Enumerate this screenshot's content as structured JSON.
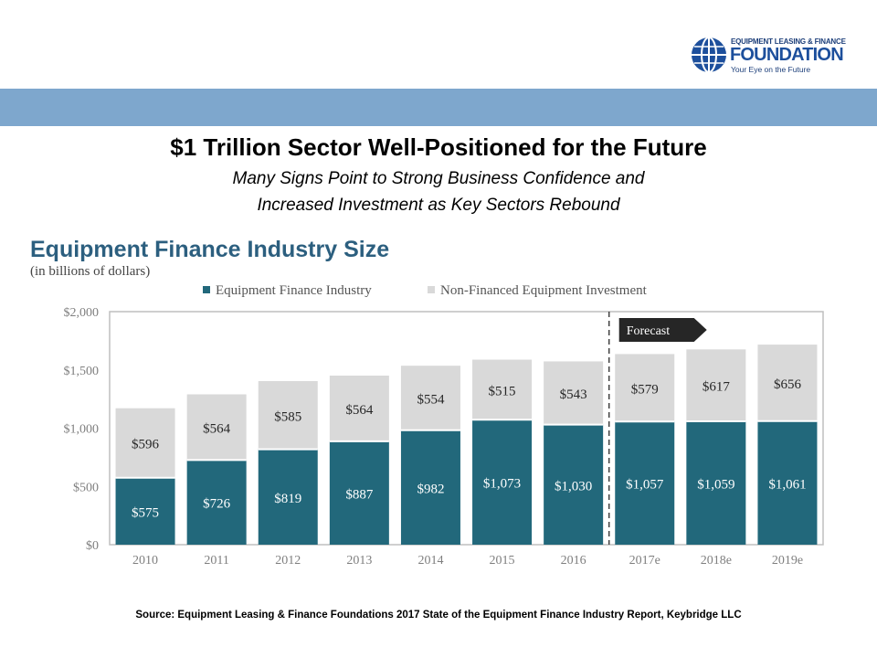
{
  "logo": {
    "line1": "EQUIPMENT LEASING & FINANCE",
    "line2": "FOUNDATION",
    "tagline": "Your Eye on the Future"
  },
  "headline": {
    "title": "$1 Trillion Sector Well-Positioned for the Future",
    "subtitle_line1": "Many Signs Point to Strong Business Confidence and",
    "subtitle_line2": "Increased Investment as Key Sectors Rebound"
  },
  "source": "Source: Equipment Leasing & Finance Foundations 2017 State of the Equipment Finance Industry Report, Keybridge LLC",
  "chart_data": {
    "type": "bar",
    "stacked": true,
    "title": "Equipment Finance Industry Size",
    "subtitle": "(in billions of dollars)",
    "categories": [
      "2010",
      "2011",
      "2012",
      "2013",
      "2014",
      "2015",
      "2016",
      "2017e",
      "2018e",
      "2019e"
    ],
    "series": [
      {
        "name": "Equipment Finance Industry",
        "color": "#22687b",
        "values": [
          575,
          726,
          819,
          887,
          982,
          1073,
          1030,
          1057,
          1059,
          1061
        ],
        "labels": [
          "$575",
          "$726",
          "$819",
          "$887",
          "$982",
          "$1,073",
          "$1,030",
          "$1,057",
          "$1,059",
          "$1,061"
        ]
      },
      {
        "name": "Non-Financed Equipment Investment",
        "color": "#d9d9d9",
        "values": [
          596,
          564,
          585,
          564,
          554,
          515,
          543,
          579,
          617,
          656
        ],
        "labels": [
          "$596",
          "$564",
          "$585",
          "$564",
          "$554",
          "$515",
          "$543",
          "$579",
          "$617",
          "$656"
        ]
      }
    ],
    "yticks": [
      0,
      500,
      1000,
      1500,
      2000
    ],
    "ytick_labels": [
      "$0",
      "$500",
      "$1,000",
      "$1,500",
      "$2,000"
    ],
    "ylim": [
      0,
      2000
    ],
    "legend_position": "top",
    "annotation": {
      "text": "Forecast",
      "starts_at": "2017e"
    }
  }
}
